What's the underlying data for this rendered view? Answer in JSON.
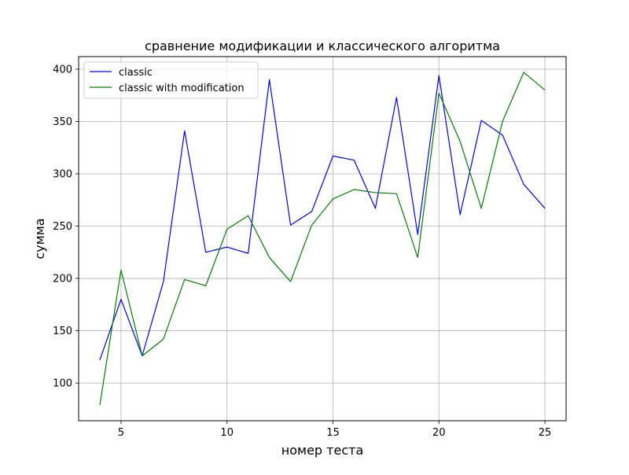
{
  "chart_data": {
    "type": "line",
    "title": "сравнение модификации и классического алгоритма",
    "xlabel": "номер теста",
    "ylabel": "сумма",
    "xlim": [
      3,
      26
    ],
    "ylim": [
      64,
      412
    ],
    "xticks": [
      5,
      10,
      15,
      20,
      25
    ],
    "yticks": [
      100,
      150,
      200,
      250,
      300,
      350,
      400
    ],
    "grid": true,
    "legend_position": "upper-left",
    "x": [
      4,
      5,
      6,
      7,
      8,
      9,
      10,
      11,
      12,
      13,
      14,
      15,
      16,
      17,
      18,
      19,
      20,
      21,
      22,
      23,
      24,
      25
    ],
    "series": [
      {
        "name": "classic",
        "color": "#0000ff",
        "values": [
          122,
          180,
          126,
          197,
          341,
          225,
          230,
          224,
          390,
          251,
          264,
          317,
          313,
          267,
          373,
          242,
          394,
          261,
          351,
          337,
          290,
          267
        ]
      },
      {
        "name": "classic with modification",
        "color": "#008000",
        "values": [
          79,
          208,
          126,
          142,
          199,
          193,
          247,
          260,
          220,
          197,
          251,
          276,
          285,
          282,
          281,
          220,
          377,
          331,
          267,
          350,
          397,
          380
        ]
      }
    ]
  }
}
